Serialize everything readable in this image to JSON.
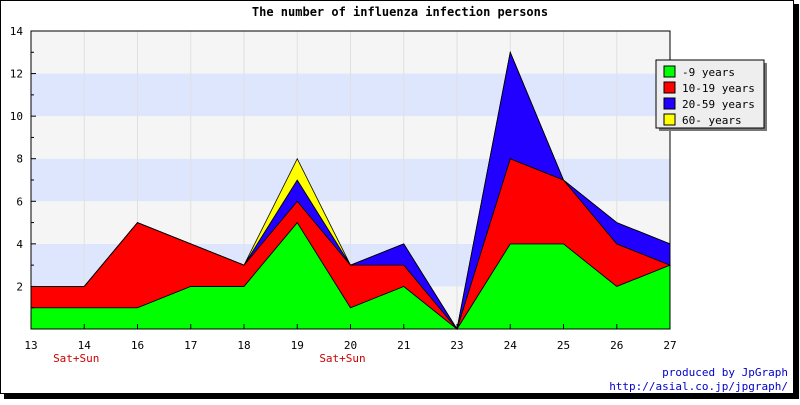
{
  "chart_data": {
    "type": "area",
    "stacked": true,
    "title": "The number of influenza infection persons",
    "xlabel": "",
    "ylabel": "",
    "categories": [
      "13",
      "14",
      "16",
      "17",
      "18",
      "19",
      "20",
      "21",
      "23",
      "24",
      "25",
      "26",
      "27"
    ],
    "weekend_labels": [
      {
        "category": "14",
        "text": "Sat+Sun"
      },
      {
        "category": "20",
        "text": "Sat+Sun"
      }
    ],
    "ylim": [
      0,
      14
    ],
    "yticks": [
      2,
      4,
      6,
      8,
      10,
      12,
      14
    ],
    "grid": "horizontal bands",
    "legend_position": "right",
    "series": [
      {
        "name": "-9 years",
        "color": "#00ff00",
        "values": [
          1,
          1,
          1,
          2,
          2,
          5,
          1,
          2,
          0,
          4,
          4,
          2,
          3
        ]
      },
      {
        "name": "10-19 years",
        "color": "#ff0000",
        "values": [
          1,
          1,
          4,
          2,
          1,
          1,
          2,
          1,
          0,
          4,
          3,
          2,
          0
        ]
      },
      {
        "name": "20-59 years",
        "color": "#2200ff",
        "values": [
          0,
          0,
          0,
          0,
          0,
          1,
          0,
          1,
          0,
          5,
          0,
          1,
          1
        ]
      },
      {
        "name": "60- years",
        "color": "#ffff00",
        "values": [
          0,
          0,
          0,
          0,
          0,
          1,
          0,
          0,
          0,
          0,
          0,
          0,
          0
        ]
      }
    ]
  },
  "credits": {
    "line1": "produced by JpGraph",
    "line2": "http://asial.co.jp/jpgraph/"
  },
  "colors": {
    "weekend_label": "#cc0000",
    "credit_text": "#0000cc",
    "band_light": "#f5f5f5",
    "band_blue": "#dde6fc"
  }
}
